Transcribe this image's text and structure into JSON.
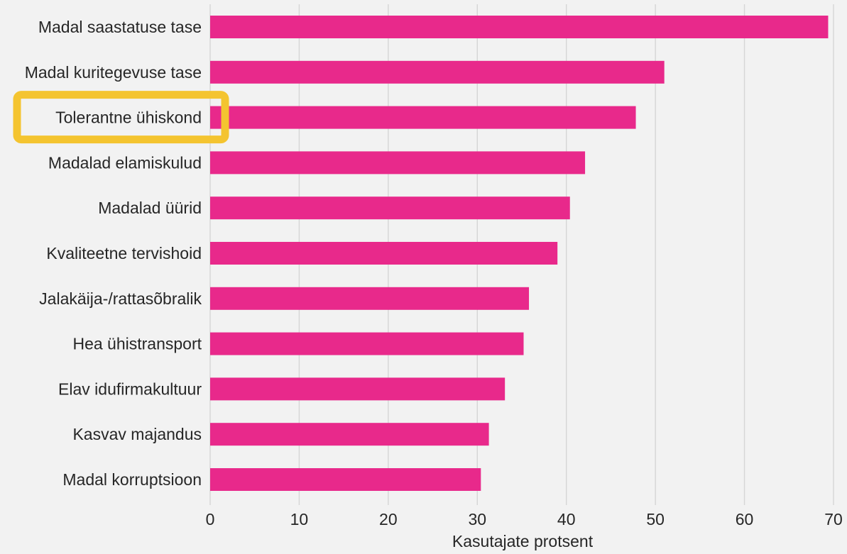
{
  "chart_data": {
    "type": "bar",
    "orientation": "horizontal",
    "categories": [
      "Madal saastatuse tase",
      "Madal kuritegevuse tase",
      "Tolerantne ühiskond",
      "Madalad elamiskulud",
      "Madalad üürid",
      "Kvaliteetne tervishoid",
      "Jalakäija-/rattasõbralik",
      "Hea ühistransport",
      "Elav idufirmakultuur",
      "Kasvav majandus",
      "Madal korruptsioon"
    ],
    "values": [
      69.4,
      51.0,
      47.8,
      42.1,
      40.4,
      39.0,
      35.8,
      35.2,
      33.1,
      31.3,
      30.4
    ],
    "xlabel": "Kasutajate protsent",
    "ylabel": "",
    "title": "",
    "xlim": [
      0,
      70
    ],
    "xticks": [
      "0",
      "10",
      "20",
      "30",
      "40",
      "50",
      "60",
      "70"
    ],
    "grid": "vertical",
    "bar_color": "#e8298b",
    "background_color": "#f2f2f2",
    "grid_color": "#d6d6d6",
    "highlight": {
      "category": "Tolerantne ühiskond",
      "color": "#f4c430"
    }
  }
}
